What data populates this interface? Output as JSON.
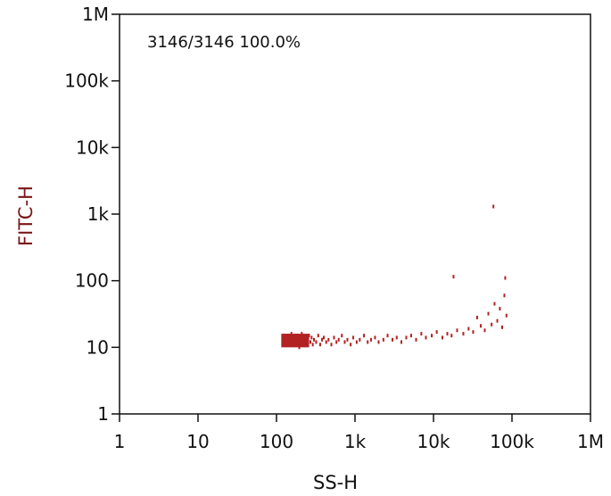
{
  "chart_data": {
    "type": "scatter",
    "title": "",
    "xlabel": "SS-H",
    "ylabel": "FITC-H",
    "x_scale": "log",
    "y_scale": "log",
    "xlim": [
      1,
      1000000
    ],
    "ylim": [
      1,
      1000000
    ],
    "x_ticks": [
      {
        "value": 1,
        "label": "1"
      },
      {
        "value": 10,
        "label": "10"
      },
      {
        "value": 100,
        "label": "100"
      },
      {
        "value": 1000,
        "label": "1k"
      },
      {
        "value": 10000,
        "label": "10k"
      },
      {
        "value": 100000,
        "label": "100k"
      },
      {
        "value": 1000000,
        "label": "1M"
      }
    ],
    "y_ticks": [
      {
        "value": 1,
        "label": "1"
      },
      {
        "value": 10,
        "label": "10"
      },
      {
        "value": 100,
        "label": "100"
      },
      {
        "value": 1000,
        "label": "1k"
      },
      {
        "value": 10000,
        "label": "10k"
      },
      {
        "value": 100000,
        "label": "100k"
      },
      {
        "value": 1000000,
        "label": "1M"
      }
    ],
    "grid": false,
    "annotation": "3146/3146   100.0%",
    "event_count": 3146,
    "point_color": "#b22222",
    "axis_title_color": "#7a1414",
    "points": [
      [
        120,
        13
      ],
      [
        125,
        12
      ],
      [
        130,
        14
      ],
      [
        135,
        11
      ],
      [
        140,
        15
      ],
      [
        145,
        12
      ],
      [
        150,
        13
      ],
      [
        155,
        16
      ],
      [
        160,
        12
      ],
      [
        165,
        14
      ],
      [
        170,
        11
      ],
      [
        175,
        13
      ],
      [
        180,
        15
      ],
      [
        185,
        12
      ],
      [
        190,
        14
      ],
      [
        195,
        10
      ],
      [
        200,
        13
      ],
      [
        210,
        16
      ],
      [
        220,
        12
      ],
      [
        230,
        14
      ],
      [
        240,
        11
      ],
      [
        250,
        13
      ],
      [
        260,
        15
      ],
      [
        270,
        12
      ],
      [
        280,
        14
      ],
      [
        290,
        11
      ],
      [
        300,
        13
      ],
      [
        320,
        12
      ],
      [
        340,
        15
      ],
      [
        360,
        11
      ],
      [
        380,
        13
      ],
      [
        400,
        14
      ],
      [
        430,
        12
      ],
      [
        460,
        13
      ],
      [
        500,
        11
      ],
      [
        540,
        14
      ],
      [
        580,
        12
      ],
      [
        620,
        13
      ],
      [
        680,
        15
      ],
      [
        740,
        12
      ],
      [
        800,
        13
      ],
      [
        880,
        11
      ],
      [
        950,
        14
      ],
      [
        1050,
        12
      ],
      [
        1150,
        13
      ],
      [
        1300,
        15
      ],
      [
        1450,
        12
      ],
      [
        1600,
        13
      ],
      [
        1800,
        14
      ],
      [
        2000,
        12
      ],
      [
        2300,
        13
      ],
      [
        2600,
        15
      ],
      [
        3000,
        13
      ],
      [
        3400,
        14
      ],
      [
        3900,
        12
      ],
      [
        4500,
        14
      ],
      [
        5200,
        15
      ],
      [
        6000,
        13
      ],
      [
        7000,
        16
      ],
      [
        8000,
        14
      ],
      [
        9500,
        15
      ],
      [
        11000,
        17
      ],
      [
        13000,
        14
      ],
      [
        15000,
        16
      ],
      [
        17000,
        15
      ],
      [
        18000,
        115
      ],
      [
        20000,
        18
      ],
      [
        24000,
        16
      ],
      [
        28000,
        19
      ],
      [
        32000,
        17
      ],
      [
        36000,
        28
      ],
      [
        40000,
        21
      ],
      [
        45000,
        18
      ],
      [
        50000,
        32
      ],
      [
        55000,
        22
      ],
      [
        58000,
        1300
      ],
      [
        60000,
        45
      ],
      [
        65000,
        25
      ],
      [
        70000,
        38
      ],
      [
        75000,
        20
      ],
      [
        80000,
        60
      ],
      [
        82000,
        110
      ],
      [
        85000,
        30
      ]
    ]
  }
}
